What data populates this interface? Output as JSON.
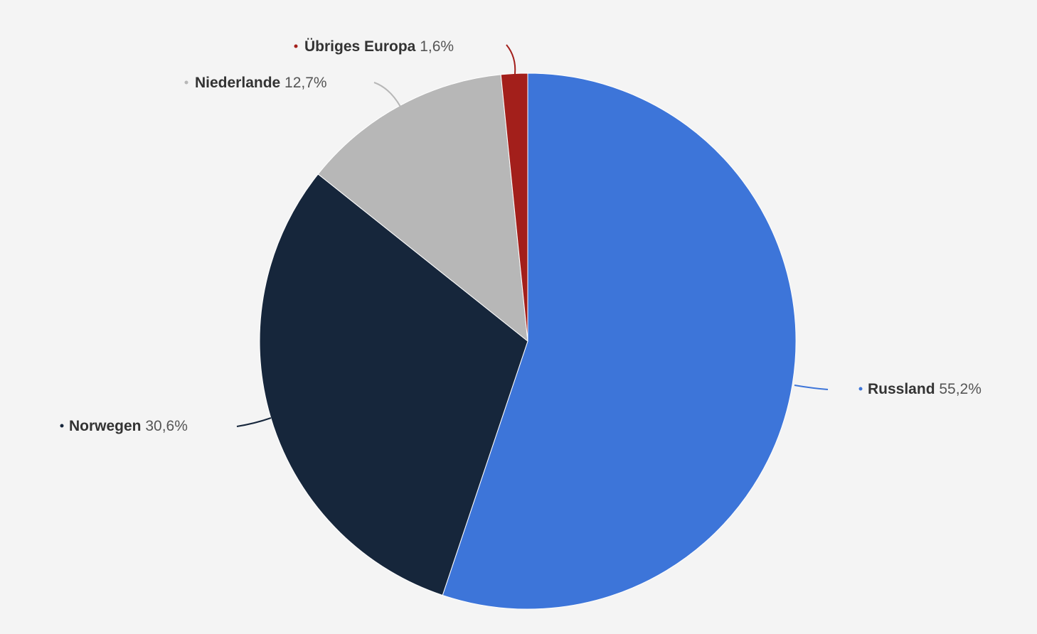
{
  "chart_data": {
    "type": "pie",
    "start_angle_deg": 0,
    "direction": "clockwise",
    "slices": [
      {
        "name": "Russland",
        "value": 55.2,
        "value_label": "55,2%",
        "color": "#3d75d9",
        "label_side": "right"
      },
      {
        "name": "Norwegen",
        "value": 30.6,
        "value_label": "30,6%",
        "color": "#16263b",
        "label_side": "left"
      },
      {
        "name": "Niederlande",
        "value": 12.7,
        "value_label": "12,7%",
        "color": "#b7b7b7",
        "label_side": "left"
      },
      {
        "name": "Übriges Europa",
        "value": 1.6,
        "value_label": "1,6%",
        "color": "#a31f1b",
        "label_side": "left"
      }
    ],
    "legend": "none",
    "background_color": "#f4f4f4"
  }
}
